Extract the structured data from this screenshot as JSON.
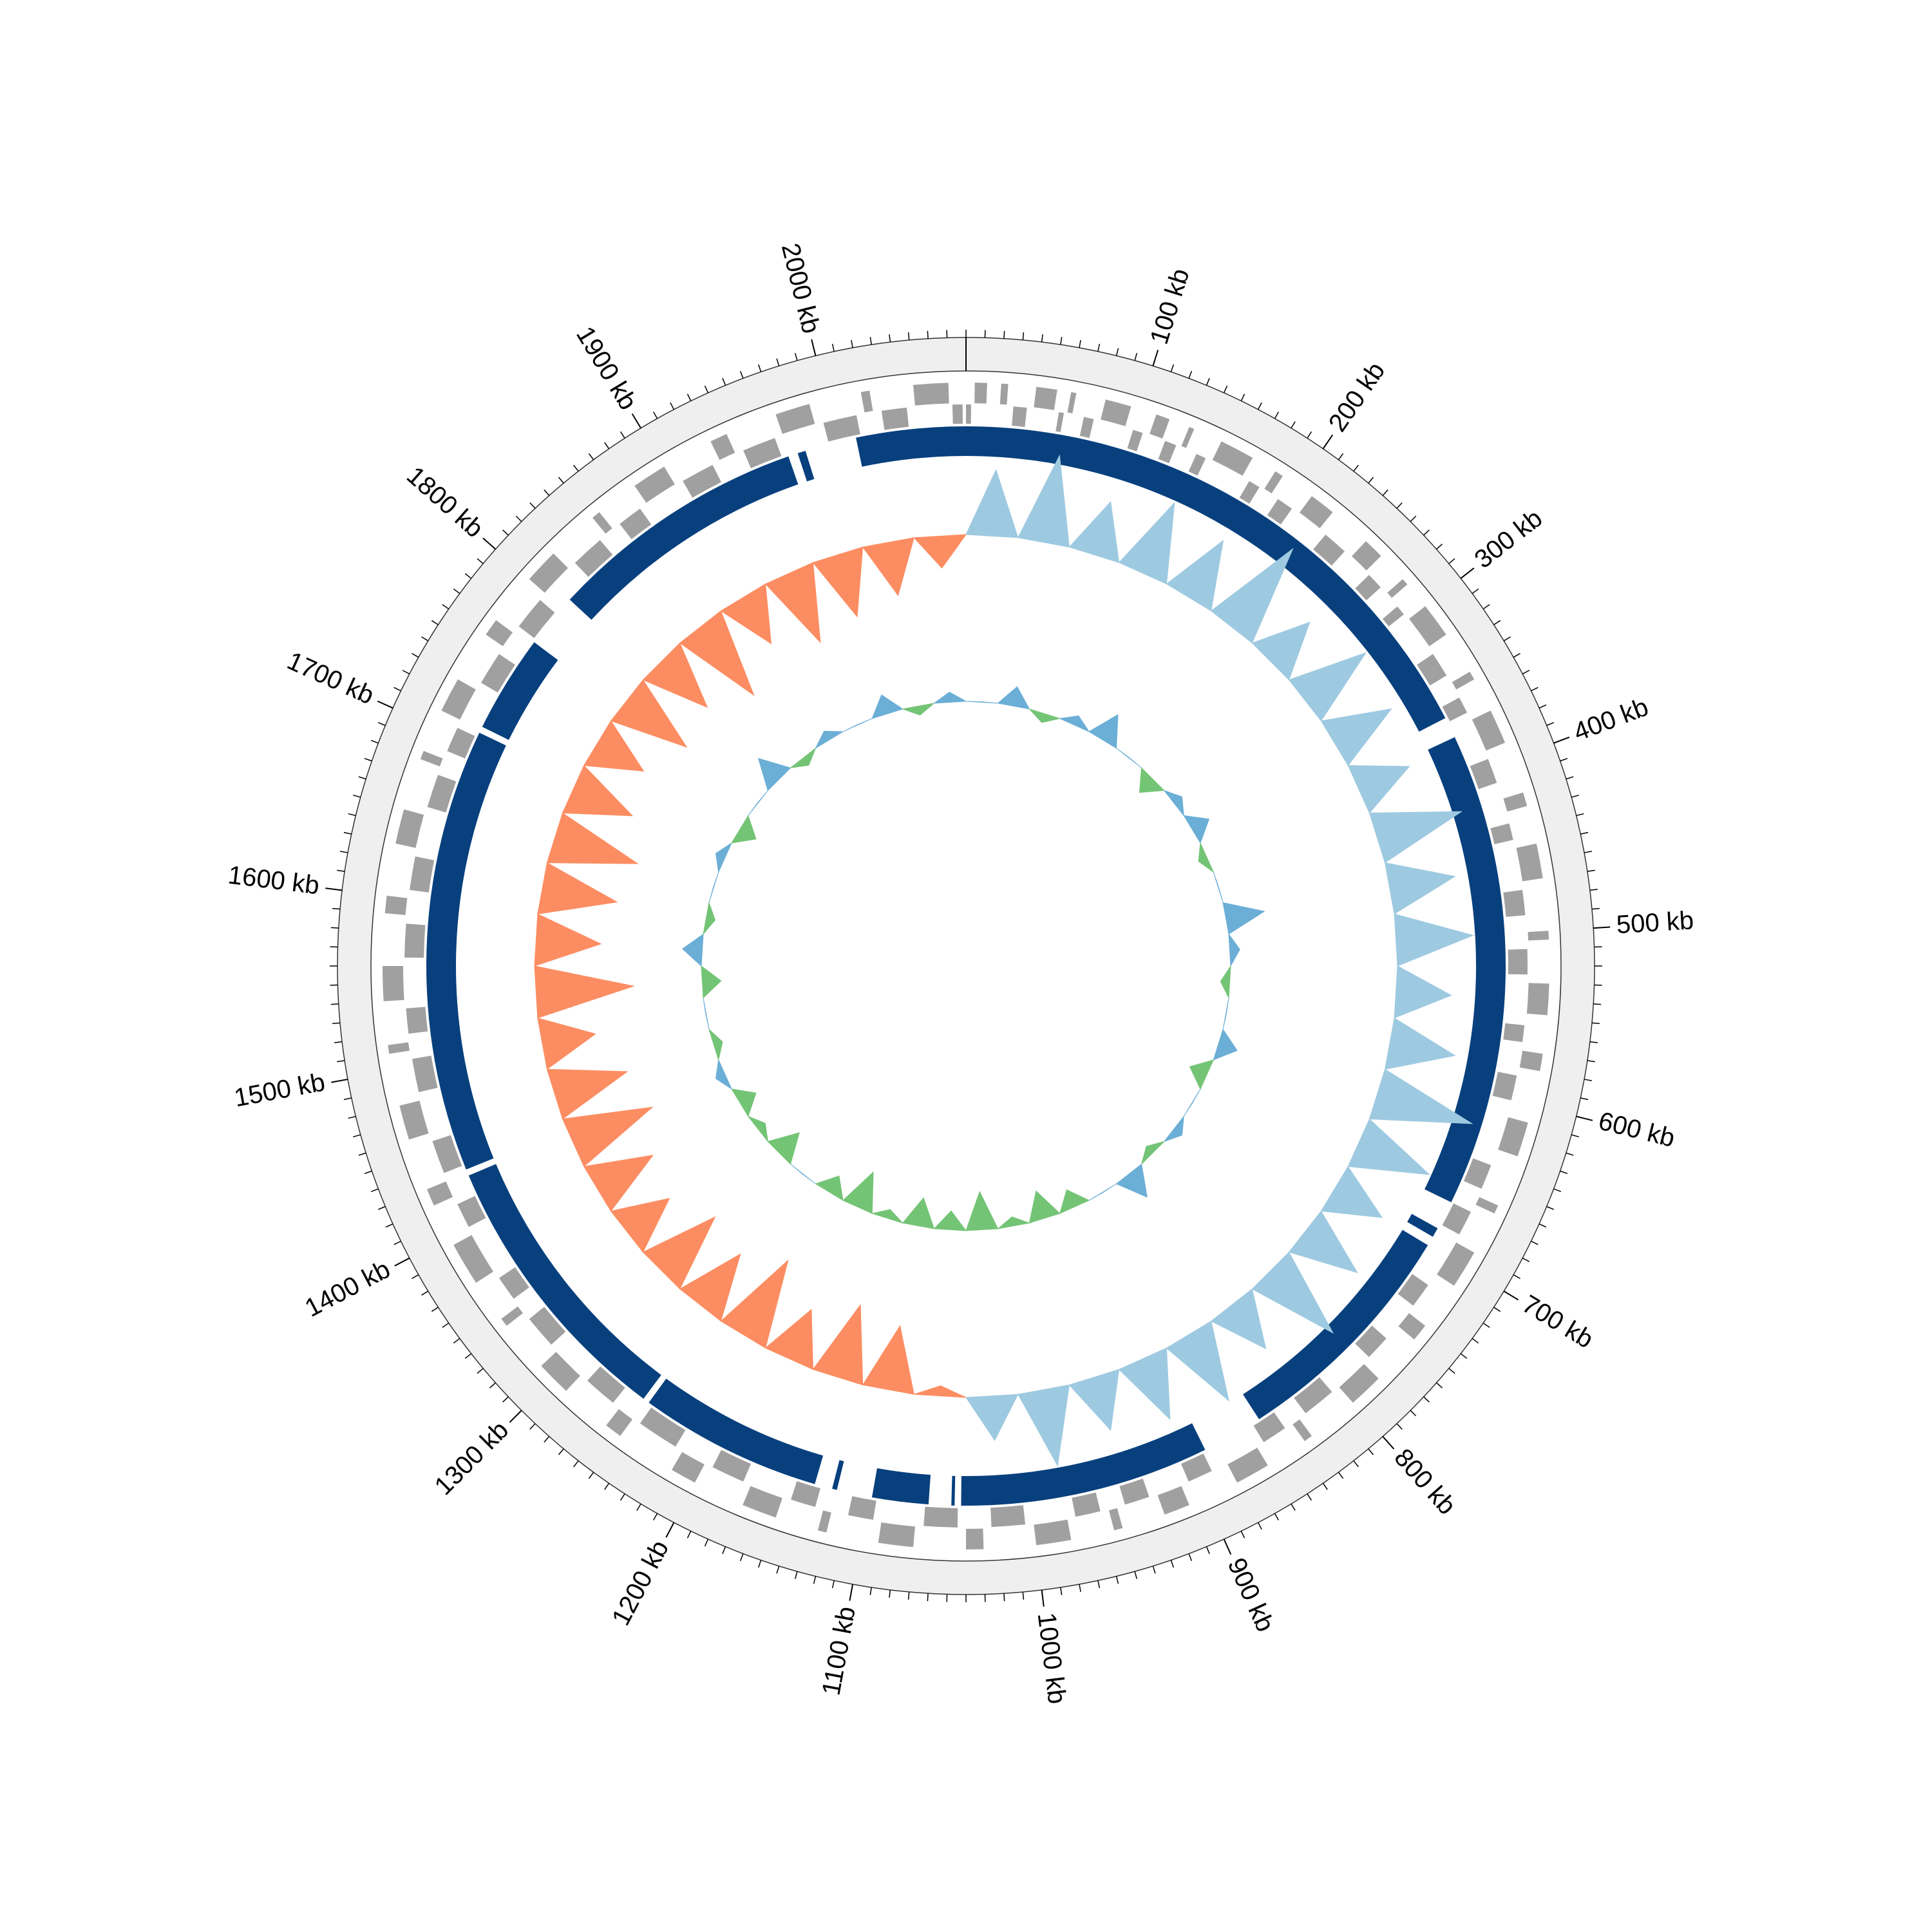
{
  "chart_data": {
    "type": "circular-genome",
    "xlim": [
      0,
      2080
    ],
    "xticks": [
      {
        "value": 100,
        "label": "100 kb"
      },
      {
        "value": 200,
        "label": "200 kb"
      },
      {
        "value": 300,
        "label": "300 kb"
      },
      {
        "value": 400,
        "label": "400 kb"
      },
      {
        "value": 500,
        "label": "500 kb"
      },
      {
        "value": 600,
        "label": "600 kb"
      },
      {
        "value": 700,
        "label": "700 kb"
      },
      {
        "value": 800,
        "label": "800 kb"
      },
      {
        "value": 900,
        "label": "900 kb"
      },
      {
        "value": 1000,
        "label": "1000 kb"
      },
      {
        "value": 1100,
        "label": "1100 kb"
      },
      {
        "value": 1200,
        "label": "1200 kb"
      },
      {
        "value": 1300,
        "label": "1300 kb"
      },
      {
        "value": 1400,
        "label": "1400 kb"
      },
      {
        "value": 1500,
        "label": "1500 kb"
      },
      {
        "value": 1600,
        "label": "1600 kb"
      },
      {
        "value": 1700,
        "label": "1700 kb"
      },
      {
        "value": 1800,
        "label": "1800 kb"
      },
      {
        "value": 1900,
        "label": "1900 kb"
      },
      {
        "value": 2000,
        "label": "2000 kb"
      }
    ],
    "minor_tick_step": 10,
    "ring_color": "#efefef",
    "forward_genes": {
      "color": "#a0a0a0",
      "intervals": [
        [
          5,
          12
        ],
        [
          20,
          24
        ],
        [
          40,
          52
        ],
        [
          60,
          63
        ],
        [
          80,
          95
        ],
        [
          110,
          118
        ],
        [
          130,
          133
        ],
        [
          150,
          170
        ],
        [
          185,
          190
        ],
        [
          210,
          225
        ],
        [
          250,
          262
        ],
        [
          280,
          284
        ],
        [
          300,
          320
        ],
        [
          345,
          350
        ],
        [
          370,
          390
        ],
        [
          420,
          428
        ],
        [
          450,
          470
        ],
        [
          500,
          505
        ],
        [
          530,
          548
        ],
        [
          570,
          580
        ],
        [
          610,
          630
        ],
        [
          660,
          665
        ],
        [
          690,
          712
        ],
        [
          740,
          750
        ],
        [
          780,
          800
        ],
        [
          830,
          835
        ],
        [
          860,
          880
        ],
        [
          910,
          925
        ],
        [
          950,
          955
        ],
        [
          980,
          1000
        ],
        [
          1030,
          1040
        ],
        [
          1070,
          1090
        ],
        [
          1120,
          1125
        ],
        [
          1150,
          1170
        ],
        [
          1200,
          1215
        ],
        [
          1250,
          1260
        ],
        [
          1290,
          1310
        ],
        [
          1340,
          1345
        ],
        [
          1370,
          1395
        ],
        [
          1420,
          1430
        ],
        [
          1460,
          1480
        ],
        [
          1510,
          1515
        ],
        [
          1540,
          1560
        ],
        [
          1590,
          1600
        ],
        [
          1630,
          1650
        ],
        [
          1680,
          1685
        ],
        [
          1710,
          1730
        ],
        [
          1760,
          1770
        ],
        [
          1800,
          1820
        ],
        [
          1850,
          1855
        ],
        [
          1880,
          1900
        ],
        [
          1930,
          1940
        ],
        [
          1970,
          1990
        ],
        [
          2020,
          2025
        ],
        [
          2050,
          2070
        ]
      ]
    },
    "reverse_genes": {
      "color": "#a0a0a0",
      "intervals": [
        [
          0,
          3
        ],
        [
          28,
          36
        ],
        [
          55,
          58
        ],
        [
          70,
          76
        ],
        [
          100,
          106
        ],
        [
          120,
          127
        ],
        [
          140,
          146
        ],
        [
          175,
          182
        ],
        [
          195,
          205
        ],
        [
          230,
          245
        ],
        [
          265,
          275
        ],
        [
          290,
          296
        ],
        [
          325,
          340
        ],
        [
          355,
          365
        ],
        [
          395,
          410
        ],
        [
          435,
          445
        ],
        [
          475,
          490
        ],
        [
          510,
          525
        ],
        [
          555,
          565
        ],
        [
          585,
          600
        ],
        [
          640,
          655
        ],
        [
          670,
          685
        ],
        [
          720,
          735
        ],
        [
          760,
          775
        ],
        [
          805,
          825
        ],
        [
          840,
          855
        ],
        [
          890,
          905
        ],
        [
          930,
          945
        ],
        [
          960,
          975
        ],
        [
          1005,
          1025
        ],
        [
          1045,
          1065
        ],
        [
          1095,
          1110
        ],
        [
          1130,
          1145
        ],
        [
          1175,
          1195
        ],
        [
          1220,
          1245
        ],
        [
          1265,
          1285
        ],
        [
          1315,
          1335
        ],
        [
          1350,
          1365
        ],
        [
          1400,
          1415
        ],
        [
          1435,
          1455
        ],
        [
          1485,
          1505
        ],
        [
          1520,
          1535
        ],
        [
          1565,
          1585
        ],
        [
          1605,
          1625
        ],
        [
          1655,
          1675
        ],
        [
          1690,
          1705
        ],
        [
          1735,
          1755
        ],
        [
          1775,
          1795
        ],
        [
          1825,
          1845
        ],
        [
          1860,
          1875
        ],
        [
          1905,
          1925
        ],
        [
          1945,
          1965
        ],
        [
          1995,
          2015
        ],
        [
          2030,
          2045
        ],
        [
          2072,
          2078
        ]
      ]
    },
    "blocks": {
      "color": "#08407e",
      "intervals": [
        [
          0,
          362
        ],
        [
          375,
          670
        ],
        [
          688,
          694
        ],
        [
          700,
          850
        ],
        [
          888,
          1043
        ],
        [
          1047,
          1049
        ],
        [
          1063,
          1098
        ],
        [
          1120,
          1123
        ],
        [
          1134,
          1248
        ],
        [
          1252,
          1428
        ],
        [
          1432,
          1708
        ],
        [
          1712,
          1773
        ],
        [
          1807,
          1969
        ],
        [
          1975,
          1980
        ],
        [
          2012,
          2080
        ]
      ]
    },
    "x": [
      0,
      40,
      80,
      120,
      160,
      200,
      240,
      280,
      320,
      360,
      400,
      440,
      480,
      520,
      560,
      600,
      640,
      680,
      720,
      760,
      800,
      840,
      880,
      920,
      960,
      1000,
      1040,
      1080,
      1120,
      1160,
      1200,
      1240,
      1280,
      1320,
      1360,
      1400,
      1440,
      1480,
      1520,
      1560,
      1600,
      1640,
      1680,
      1720,
      1760,
      1800,
      1840,
      1880,
      1920,
      1960,
      2000,
      2040
    ],
    "gc_skew": {
      "ylim": [
        -0.1,
        0.1
      ],
      "positive_color": "#9ecae1",
      "negative_color": "#fc8d62",
      "values": [
        0.06,
        0.08,
        0.05,
        0.07,
        0.06,
        0.09,
        0.05,
        0.07,
        0.06,
        0.05,
        0.08,
        0.06,
        0.07,
        0.05,
        0.06,
        0.09,
        0.07,
        0.05,
        0.06,
        0.08,
        0.05,
        0.07,
        0.06,
        0.05,
        0.07,
        0.04,
        -0.01,
        -0.06,
        -0.07,
        -0.05,
        -0.08,
        -0.06,
        -0.07,
        -0.05,
        -0.06,
        -0.08,
        -0.07,
        -0.05,
        -0.09,
        -0.06,
        -0.07,
        -0.08,
        -0.06,
        -0.05,
        -0.07,
        -0.06,
        -0.08,
        -0.05,
        -0.07,
        -0.06,
        -0.05,
        -0.03
      ]
    },
    "gc_content": {
      "baseline": 38,
      "ylim": [
        28,
        48
      ],
      "above_color": "#6baed6",
      "below_color": "#74c476",
      "values": [
        38,
        40,
        37,
        39,
        41,
        38,
        36,
        39,
        40,
        37,
        38,
        42,
        39,
        37,
        38,
        40,
        36,
        38,
        39,
        37,
        41,
        38,
        36,
        35,
        37,
        34,
        36,
        35,
        37,
        34,
        36,
        38,
        35,
        37,
        36,
        39,
        37,
        38,
        36,
        40,
        37,
        38,
        39,
        36,
        38,
        41,
        37,
        39,
        38,
        40,
        37,
        39
      ]
    }
  }
}
